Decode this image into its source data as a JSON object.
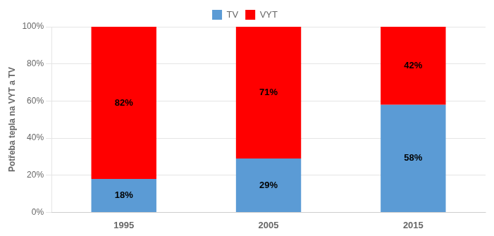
{
  "chart_data": {
    "type": "bar",
    "stacked": true,
    "categories": [
      "1995",
      "2005",
      "2015"
    ],
    "series": [
      {
        "name": "TV",
        "color": "#5b9bd5",
        "values": [
          18,
          29,
          58
        ],
        "value_labels": [
          "18%",
          "29%",
          "58%"
        ]
      },
      {
        "name": "VYT",
        "color": "#ff0000",
        "values": [
          82,
          71,
          42
        ],
        "value_labels": [
          "82%",
          "71%",
          "42%"
        ]
      }
    ],
    "ylabel": "Potřeba tepla na VYT a TV",
    "ylim": [
      0,
      100
    ],
    "yticks": [
      {
        "value": 0,
        "label": "0%"
      },
      {
        "value": 20,
        "label": "20%"
      },
      {
        "value": 40,
        "label": "40%"
      },
      {
        "value": 60,
        "label": "60%"
      },
      {
        "value": 80,
        "label": "80%"
      },
      {
        "value": 100,
        "label": "100%"
      }
    ],
    "grid": true,
    "legend": "top",
    "data_labels": true
  }
}
